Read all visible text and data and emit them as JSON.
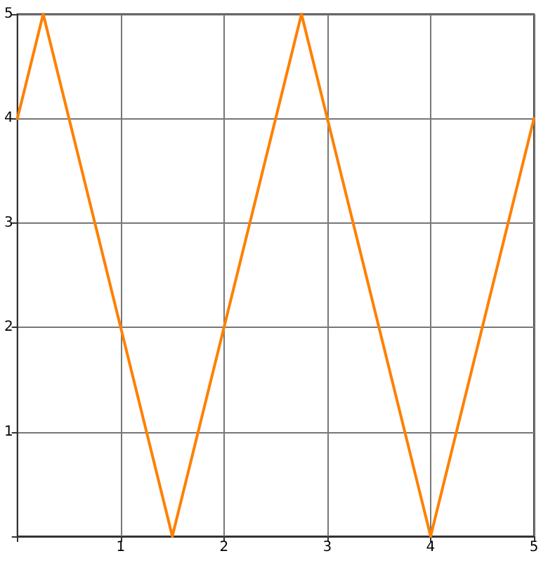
{
  "chart_data": {
    "type": "line",
    "x": [
      0,
      0.25,
      1.5,
      2.75,
      4,
      5
    ],
    "values": [
      4,
      5,
      0,
      5,
      0,
      4
    ],
    "color": "#ff8000",
    "xlim": [
      0,
      5
    ],
    "ylim": [
      0,
      5
    ],
    "xticks": [
      {
        "value": 0,
        "label": null
      },
      1,
      2,
      3,
      4,
      5
    ],
    "yticks": [
      {
        "value": 0,
        "label": null
      },
      1,
      2,
      3,
      4,
      5
    ],
    "grid": true,
    "marker": "none",
    "line_style": "solid"
  }
}
